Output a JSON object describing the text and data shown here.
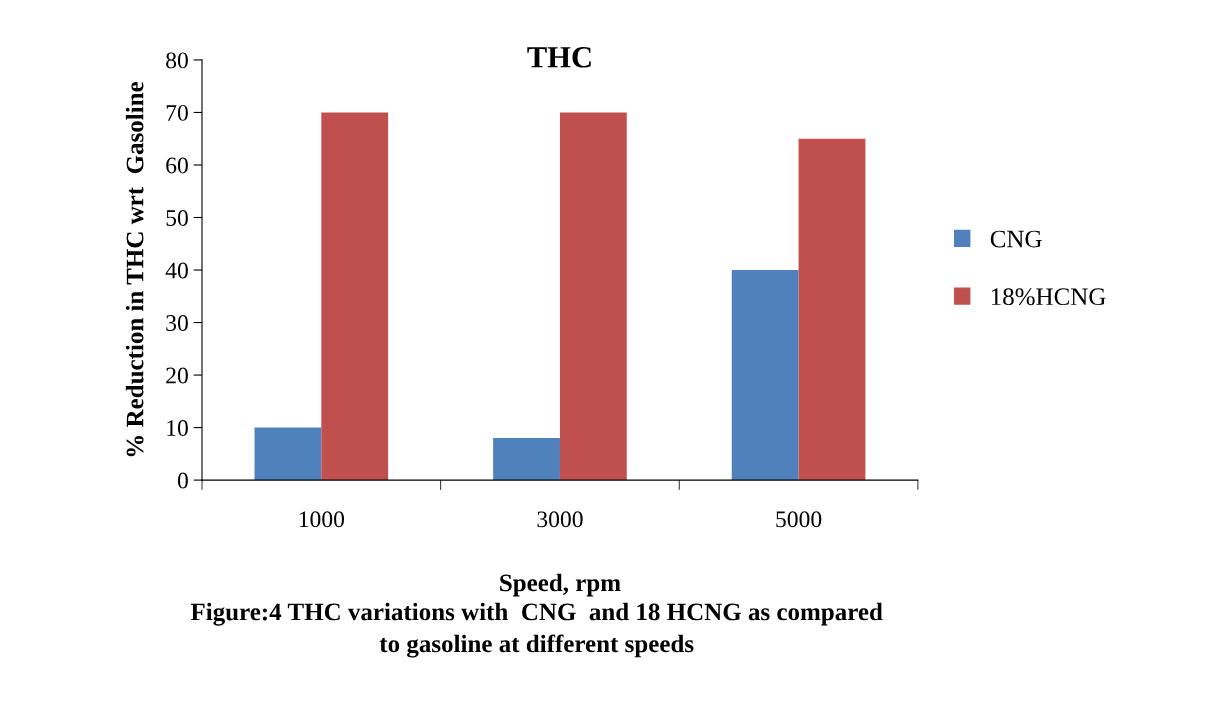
{
  "chart_data": {
    "type": "bar",
    "title": "THC",
    "xlabel": "Speed, rpm",
    "ylabel": "% Reduction in THC wrt  Gasoline",
    "categories": [
      "1000",
      "3000",
      "5000"
    ],
    "series": [
      {
        "name": "CNG",
        "color": "#4f81bd",
        "values": [
          10,
          8,
          40
        ]
      },
      {
        "name": "18%HCNG",
        "color": "#c0504d",
        "values": [
          70,
          70,
          65
        ]
      }
    ],
    "ylim": [
      0,
      80
    ],
    "yticks": [
      0,
      10,
      20,
      30,
      40,
      50,
      60,
      70,
      80
    ],
    "grid": false,
    "legend": "right",
    "annotations": [
      "Figure:4 THC variations with  CNG  and 18 HCNG as compared\nto gasoline at different speeds"
    ]
  }
}
